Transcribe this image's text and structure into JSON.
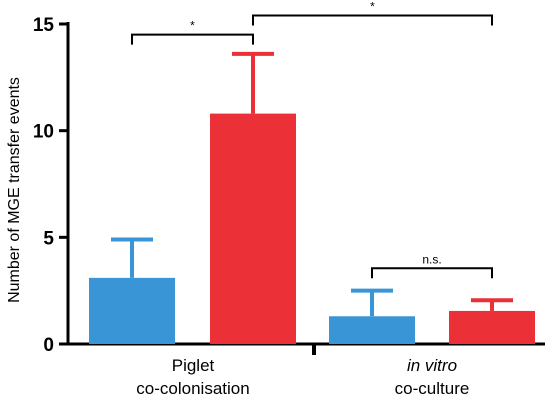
{
  "chart_data": {
    "type": "bar",
    "ylabel": "Number of MGE transfer events",
    "ylim": [
      0,
      15
    ],
    "yticks": [
      "0",
      "5",
      "10",
      "15"
    ],
    "colors": {
      "blue": "#3a95d6",
      "red": "#ec3038"
    },
    "groups": [
      {
        "label_line1": "Piglet",
        "label_line2": "co-colonisation",
        "line1_italic": false
      },
      {
        "label_line1": "in vitro",
        "label_line2": "co-culture",
        "line1_italic": true
      }
    ],
    "bars": [
      {
        "group": 0,
        "color": "blue",
        "value": 3.1,
        "error": 1.8
      },
      {
        "group": 0,
        "color": "red",
        "value": 10.8,
        "error": 2.8
      },
      {
        "group": 1,
        "color": "blue",
        "value": 1.3,
        "error": 1.2
      },
      {
        "group": 1,
        "color": "red",
        "value": 1.55,
        "error": 0.5
      }
    ],
    "significance": [
      {
        "from_bar": 0,
        "to_bar": 1,
        "y": 14.5,
        "label": "*"
      },
      {
        "from_bar": 1,
        "to_bar": 3,
        "y": 15.4,
        "label": "*"
      },
      {
        "from_bar": 2,
        "to_bar": 3,
        "y": 3.55,
        "label": "n.s."
      }
    ]
  }
}
